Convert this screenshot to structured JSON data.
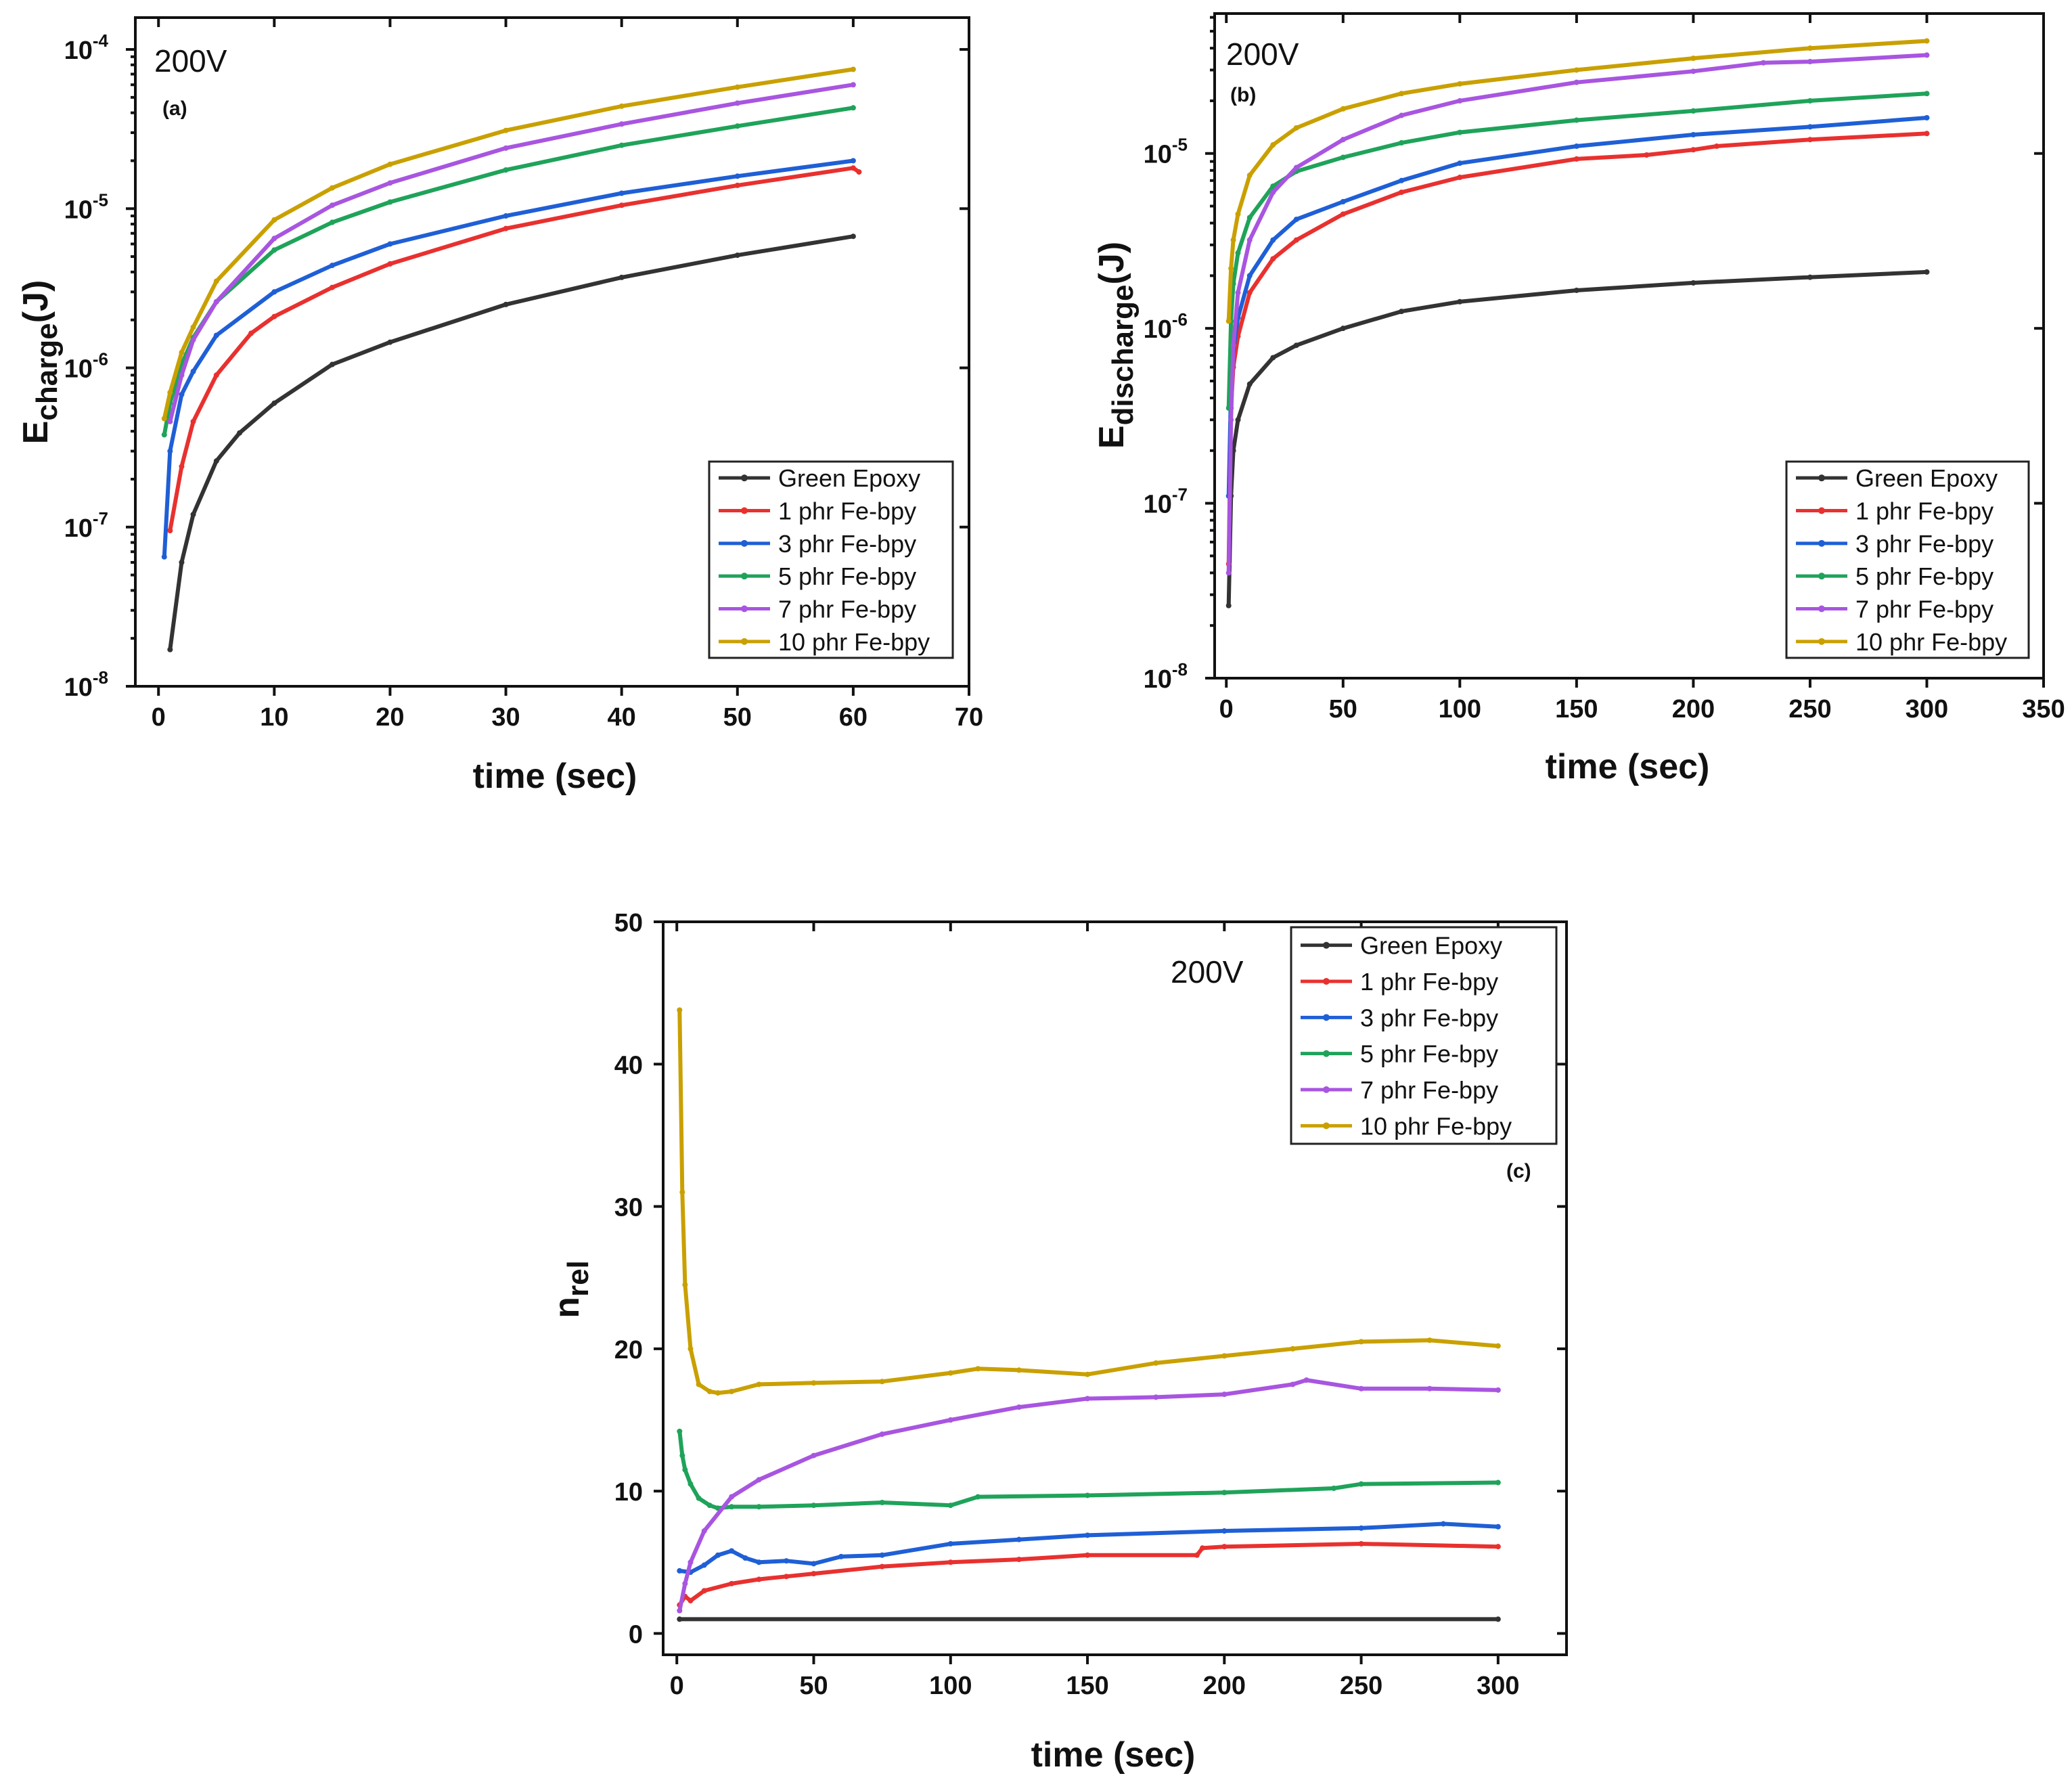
{
  "figure_background": "#ffffff",
  "chart_data": [
    {
      "id": "a",
      "type": "line",
      "panel_label": "(a)",
      "annotation": "200V",
      "xlabel": "time (sec)",
      "ylabel_main": "E",
      "ylabel_sub": "charge",
      "ylabel_unit": "(J)",
      "yscale": "log",
      "xlim": [
        -2,
        70
      ],
      "xticks": [
        0,
        10,
        20,
        30,
        40,
        50,
        60,
        70
      ],
      "ylim_exp": [
        -8,
        -3.8
      ],
      "yticks": [
        {
          "base": "10",
          "exp": "-8"
        },
        {
          "base": "10",
          "exp": "-7"
        },
        {
          "base": "10",
          "exp": "-6"
        },
        {
          "base": "10",
          "exp": "-5"
        },
        {
          "base": "10",
          "exp": "-4"
        }
      ],
      "ytick_exps": [
        -8,
        -7,
        -6,
        -5,
        -4
      ],
      "legend_position": "bottom-right",
      "series": [
        {
          "name": "Green Epoxy",
          "color": "#333333",
          "x": [
            1,
            2,
            3,
            5,
            7,
            10,
            15,
            20,
            30,
            40,
            50,
            60
          ],
          "y": [
            1.7e-08,
            6e-08,
            1.2e-07,
            2.6e-07,
            3.9e-07,
            6e-07,
            1.05e-06,
            1.45e-06,
            2.5e-06,
            3.7e-06,
            5.1e-06,
            6.7e-06
          ]
        },
        {
          "name": "1 phr Fe-bpy",
          "color": "#e8312f",
          "x": [
            1,
            2,
            3,
            5,
            8,
            10,
            15,
            20,
            30,
            40,
            50,
            60,
            60.5
          ],
          "y": [
            9.5e-08,
            2.4e-07,
            4.6e-07,
            9e-07,
            1.65e-06,
            2.1e-06,
            3.2e-06,
            4.5e-06,
            7.5e-06,
            1.05e-05,
            1.4e-05,
            1.8e-05,
            1.7e-05
          ]
        },
        {
          "name": "3 phr Fe-bpy",
          "color": "#1f5fd6",
          "x": [
            0.5,
            1,
            2,
            3,
            5,
            10,
            15,
            20,
            30,
            40,
            50,
            60
          ],
          "y": [
            6.5e-08,
            3e-07,
            6.8e-07,
            9.5e-07,
            1.6e-06,
            3e-06,
            4.4e-06,
            6e-06,
            9e-06,
            1.25e-05,
            1.6e-05,
            2e-05
          ]
        },
        {
          "name": "5 phr Fe-bpy",
          "color": "#1fa35a",
          "x": [
            0.5,
            1,
            2,
            3,
            5,
            10,
            15,
            20,
            30,
            40,
            50,
            60
          ],
          "y": [
            3.8e-07,
            6e-07,
            1.05e-06,
            1.55e-06,
            2.6e-06,
            5.5e-06,
            8.2e-06,
            1.1e-05,
            1.75e-05,
            2.5e-05,
            3.3e-05,
            4.3e-05
          ]
        },
        {
          "name": "7 phr Fe-bpy",
          "color": "#a855e0",
          "x": [
            1,
            2,
            3,
            5,
            10,
            15,
            20,
            30,
            40,
            50,
            60
          ],
          "y": [
            4.6e-07,
            9e-07,
            1.5e-06,
            2.6e-06,
            6.5e-06,
            1.05e-05,
            1.45e-05,
            2.4e-05,
            3.4e-05,
            4.6e-05,
            6e-05
          ]
        },
        {
          "name": "10 phr Fe-bpy",
          "color": "#c9a000",
          "x": [
            0.5,
            1,
            2,
            3,
            5,
            10,
            15,
            20,
            30,
            40,
            50,
            60
          ],
          "y": [
            4.8e-07,
            7e-07,
            1.25e-06,
            1.8e-06,
            3.5e-06,
            8.5e-06,
            1.35e-05,
            1.9e-05,
            3.1e-05,
            4.4e-05,
            5.8e-05,
            7.5e-05
          ]
        }
      ]
    },
    {
      "id": "b",
      "type": "line",
      "panel_label": "(b)",
      "annotation": "200V",
      "xlabel": "time (sec)",
      "ylabel_main": "E",
      "ylabel_sub": "discharge",
      "ylabel_unit": "(J)",
      "yscale": "log",
      "xlim": [
        -5,
        350
      ],
      "xticks": [
        0,
        50,
        100,
        150,
        200,
        250,
        300,
        350
      ],
      "ylim_exp": [
        -8,
        -4.2
      ],
      "yticks": [
        {
          "base": "10",
          "exp": "-8"
        },
        {
          "base": "10",
          "exp": "-7"
        },
        {
          "base": "10",
          "exp": "-6"
        },
        {
          "base": "10",
          "exp": "-5"
        }
      ],
      "ytick_exps": [
        -8,
        -7,
        -6,
        -5
      ],
      "legend_position": "bottom-right",
      "series": [
        {
          "name": "Green Epoxy",
          "color": "#333333",
          "x": [
            1,
            2,
            3,
            5,
            10,
            20,
            30,
            50,
            75,
            100,
            150,
            200,
            250,
            300
          ],
          "y": [
            2.6e-08,
            1.1e-07,
            2e-07,
            3e-07,
            4.8e-07,
            6.8e-07,
            8e-07,
            1e-06,
            1.25e-06,
            1.42e-06,
            1.65e-06,
            1.82e-06,
            1.96e-06,
            2.1e-06
          ]
        },
        {
          "name": "1 phr Fe-bpy",
          "color": "#e8312f",
          "x": [
            1,
            2,
            3,
            5,
            10,
            20,
            30,
            50,
            75,
            100,
            150,
            180,
            200,
            210,
            250,
            300
          ],
          "y": [
            4.5e-08,
            3.5e-07,
            6e-07,
            9e-07,
            1.6e-06,
            2.5e-06,
            3.2e-06,
            4.5e-06,
            6e-06,
            7.3e-06,
            9.3e-06,
            9.8e-06,
            1.05e-05,
            1.1e-05,
            1.2e-05,
            1.3e-05
          ]
        },
        {
          "name": "3 phr Fe-bpy",
          "color": "#1f5fd6",
          "x": [
            1,
            2,
            3,
            5,
            10,
            20,
            30,
            50,
            75,
            100,
            150,
            200,
            250,
            300
          ],
          "y": [
            1.1e-07,
            4.5e-07,
            7.5e-07,
            1.15e-06,
            2e-06,
            3.2e-06,
            4.2e-06,
            5.3e-06,
            7e-06,
            8.8e-06,
            1.1e-05,
            1.28e-05,
            1.42e-05,
            1.6e-05
          ]
        },
        {
          "name": "5 phr Fe-bpy",
          "color": "#1fa35a",
          "x": [
            1,
            2,
            3,
            5,
            10,
            20,
            30,
            50,
            75,
            100,
            150,
            200,
            250,
            300
          ],
          "y": [
            3.5e-07,
            1.1e-06,
            1.8e-06,
            2.7e-06,
            4.3e-06,
            6.5e-06,
            7.9e-06,
            9.5e-06,
            1.15e-05,
            1.32e-05,
            1.55e-05,
            1.75e-05,
            2e-05,
            2.2e-05
          ]
        },
        {
          "name": "7 phr Fe-bpy",
          "color": "#a855e0",
          "x": [
            1,
            2,
            3,
            5,
            10,
            20,
            30,
            50,
            75,
            100,
            150,
            200,
            230,
            250,
            300
          ],
          "y": [
            4e-08,
            3e-07,
            8e-07,
            1.6e-06,
            3.2e-06,
            6e-06,
            8.3e-06,
            1.2e-05,
            1.65e-05,
            2e-05,
            2.55e-05,
            2.95e-05,
            3.3e-05,
            3.35e-05,
            3.65e-05
          ]
        },
        {
          "name": "10 phr Fe-bpy",
          "color": "#c9a000",
          "x": [
            1,
            2,
            3,
            5,
            10,
            20,
            30,
            50,
            75,
            100,
            150,
            200,
            250,
            300
          ],
          "y": [
            1.1e-06,
            2.2e-06,
            3.2e-06,
            4.5e-06,
            7.5e-06,
            1.12e-05,
            1.4e-05,
            1.8e-05,
            2.2e-05,
            2.5e-05,
            3e-05,
            3.5e-05,
            4e-05,
            4.4e-05
          ]
        }
      ]
    },
    {
      "id": "c",
      "type": "line",
      "panel_label": "(c)",
      "annotation": "200V",
      "xlabel": "time (sec)",
      "ylabel_main": "n",
      "ylabel_sub": "rel",
      "ylabel_unit": "",
      "yscale": "linear",
      "xlim": [
        -5,
        325
      ],
      "xticks": [
        0,
        50,
        100,
        150,
        200,
        250,
        300
      ],
      "ylim": [
        -1.5,
        50
      ],
      "yticks_linear": [
        0,
        10,
        20,
        30,
        40,
        50
      ],
      "legend_position": "top-right",
      "series": [
        {
          "name": "Green Epoxy",
          "color": "#333333",
          "x": [
            1,
            300
          ],
          "y": [
            1,
            1
          ]
        },
        {
          "name": "1 phr Fe-bpy",
          "color": "#e8312f",
          "x": [
            1,
            3,
            5,
            10,
            20,
            30,
            40,
            50,
            75,
            100,
            125,
            150,
            190,
            192,
            200,
            250,
            300
          ],
          "y": [
            2.0,
            2.6,
            2.3,
            3.0,
            3.5,
            3.8,
            4.0,
            4.2,
            4.7,
            5.0,
            5.2,
            5.5,
            5.5,
            6.0,
            6.1,
            6.3,
            6.1
          ]
        },
        {
          "name": "3 phr Fe-bpy",
          "color": "#1f5fd6",
          "x": [
            1,
            5,
            10,
            15,
            20,
            25,
            30,
            40,
            50,
            60,
            75,
            100,
            125,
            150,
            200,
            250,
            280,
            300
          ],
          "y": [
            4.4,
            4.3,
            4.8,
            5.5,
            5.8,
            5.3,
            5.0,
            5.1,
            4.9,
            5.4,
            5.5,
            6.3,
            6.6,
            6.9,
            7.2,
            7.4,
            7.7,
            7.5
          ]
        },
        {
          "name": "5 phr Fe-bpy",
          "color": "#1fa35a",
          "x": [
            1,
            2,
            3,
            5,
            8,
            12,
            15,
            20,
            30,
            50,
            75,
            100,
            110,
            150,
            200,
            240,
            250,
            300
          ],
          "y": [
            14.2,
            12.5,
            11.5,
            10.5,
            9.5,
            9.0,
            8.8,
            8.9,
            8.9,
            9.0,
            9.2,
            9.0,
            9.6,
            9.7,
            9.9,
            10.2,
            10.5,
            10.6
          ]
        },
        {
          "name": "7 phr Fe-bpy",
          "color": "#a855e0",
          "x": [
            1,
            3,
            5,
            10,
            20,
            30,
            50,
            75,
            100,
            125,
            150,
            175,
            200,
            225,
            230,
            250,
            275,
            300
          ],
          "y": [
            1.6,
            3.5,
            5.0,
            7.2,
            9.6,
            10.8,
            12.5,
            14.0,
            15.0,
            15.9,
            16.5,
            16.6,
            16.8,
            17.5,
            17.8,
            17.2,
            17.2,
            17.1
          ]
        },
        {
          "name": "10 phr Fe-bpy",
          "color": "#c9a000",
          "x": [
            1,
            2,
            3,
            5,
            8,
            12,
            15,
            20,
            30,
            50,
            75,
            100,
            110,
            125,
            150,
            175,
            200,
            225,
            250,
            275,
            300
          ],
          "y": [
            43.8,
            31.0,
            24.5,
            20.0,
            17.5,
            17.0,
            16.9,
            17.0,
            17.5,
            17.6,
            17.7,
            18.3,
            18.6,
            18.5,
            18.2,
            19.0,
            19.5,
            20.0,
            20.5,
            20.6,
            20.2
          ]
        }
      ]
    }
  ]
}
